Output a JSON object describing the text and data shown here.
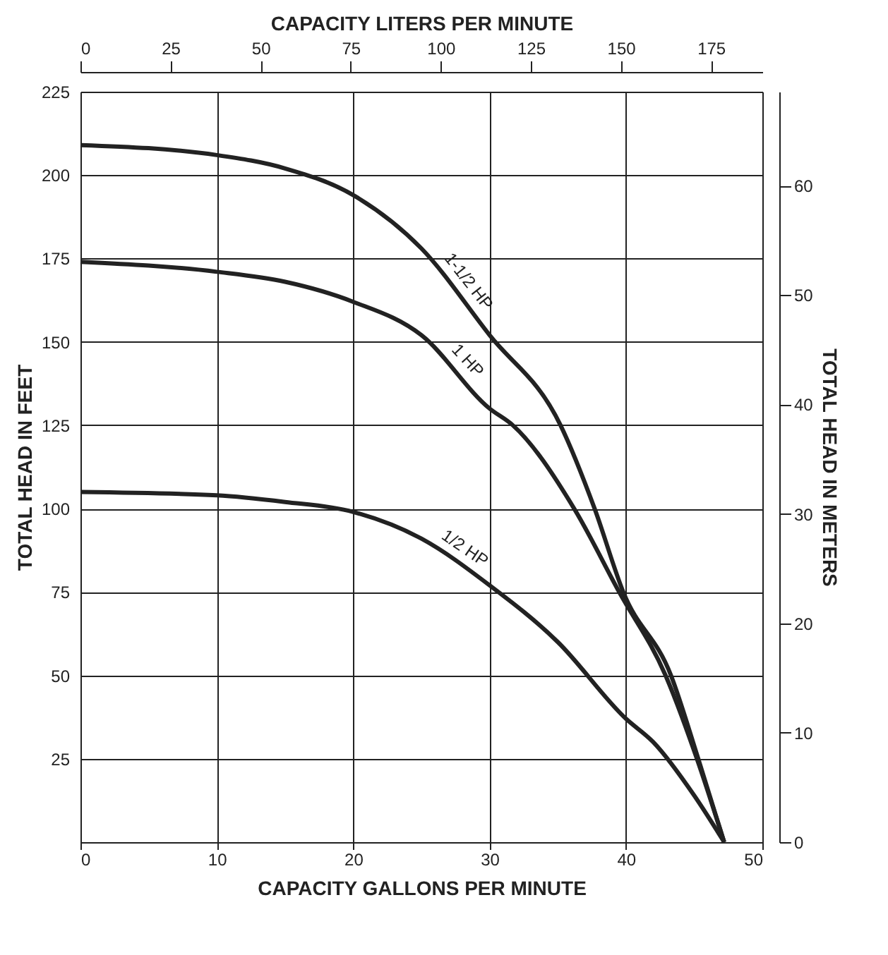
{
  "chart_data": {
    "type": "line",
    "xlabel": "CAPACITY GALLONS PER MINUTE",
    "ylabel": "TOTAL HEAD IN FEET",
    "y2label": "TOTAL HEAD IN METERS",
    "x2label": "CAPACITY LITERS PER MINUTE",
    "xlim": [
      0,
      50
    ],
    "xticks": [
      0,
      10,
      20,
      30,
      40,
      50
    ],
    "ylim": [
      0,
      225
    ],
    "yticks": [
      {
        "value": 0,
        "label": null
      },
      25,
      50,
      75,
      100,
      125,
      150,
      175,
      200,
      225
    ],
    "x2lim": [
      0,
      189.27
    ],
    "x2ticks": [
      0,
      25,
      50,
      75,
      100,
      125,
      150,
      175
    ],
    "y2lim": [
      0,
      68.58
    ],
    "y2ticks": [
      0,
      10,
      20,
      30,
      40,
      50,
      60
    ],
    "grid": true,
    "legend": false,
    "marker": "none",
    "line_style": "solid",
    "series": [
      {
        "name": "1-1/2 HP",
        "color": "#222222",
        "x": [
          0,
          10,
          15,
          20,
          25,
          30,
          35.2,
          37.7,
          39.8,
          43.3,
          45.3,
          47.2
        ],
        "values": [
          209,
          206,
          202,
          194,
          178,
          152,
          125,
          100,
          75,
          50,
          25,
          0
        ]
      },
      {
        "name": "1 HP",
        "color": "#222222",
        "x": [
          0,
          10,
          15,
          20,
          25,
          30,
          31.7,
          36.2,
          39.5,
          42.9,
          45.2,
          47.2
        ],
        "values": [
          174,
          171,
          168,
          162,
          152,
          130,
          125,
          100,
          75,
          50,
          25,
          0
        ]
      },
      {
        "name": "1/2 HP",
        "color": "#222222",
        "x": [
          0,
          10,
          15,
          20,
          25,
          30,
          35,
          40,
          42,
          45,
          47.2
        ],
        "values": [
          105,
          104,
          102,
          99,
          91,
          77,
          60,
          37,
          30,
          14,
          0
        ]
      }
    ]
  }
}
